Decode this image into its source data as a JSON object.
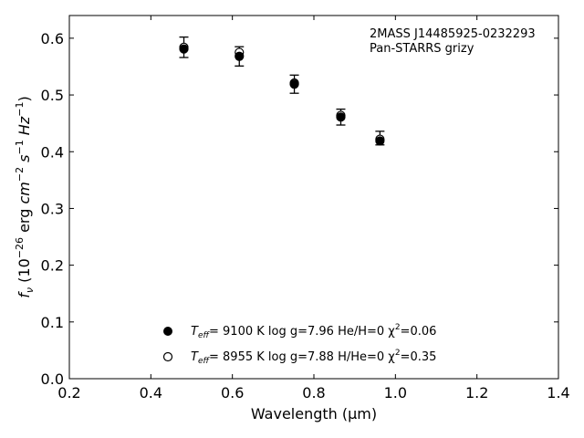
{
  "chart_data": {
    "type": "scatter",
    "title": "",
    "xlabel": "Wavelength (μm)",
    "ylabel_parts": {
      "symbol": "f",
      "symbol_sub": "ν",
      "unit_prefix": " (10",
      "exp1": "−26",
      "mid": " erg ",
      "cm": "cm",
      "exp2": "−2",
      "s": " s",
      "exp3": "−1",
      "hz": " Hz",
      "exp4": "−1",
      "close": ")"
    },
    "xlim": [
      0.2,
      1.4
    ],
    "ylim": [
      0.0,
      0.64
    ],
    "xticks": [
      0.2,
      0.4,
      0.6,
      0.8,
      1.0,
      1.2,
      1.4
    ],
    "xtick_labels": [
      "0.2",
      "0.4",
      "0.6",
      "0.8",
      "1.0",
      "1.2",
      "1.4"
    ],
    "yticks": [
      0.0,
      0.1,
      0.2,
      0.3,
      0.4,
      0.5,
      0.6
    ],
    "ytick_labels": [
      "0.0",
      "0.1",
      "0.2",
      "0.3",
      "0.4",
      "0.5",
      "0.6"
    ],
    "grid": false,
    "annotation": {
      "line1": "2MASS J14485925-0232293",
      "line2": "Pan-STARRS grizy"
    },
    "observed": {
      "x": [
        0.481,
        0.617,
        0.752,
        0.866,
        0.962
      ],
      "y": [
        0.584,
        0.568,
        0.519,
        0.461,
        0.424
      ],
      "err": [
        0.018,
        0.017,
        0.016,
        0.014,
        0.012
      ]
    },
    "series": [
      {
        "marker": "filled-circle",
        "x": [
          0.481,
          0.617,
          0.752,
          0.866,
          0.962
        ],
        "y": [
          0.581,
          0.568,
          0.519,
          0.461,
          0.419
        ],
        "legend": {
          "teff_label": "T",
          "teff_sub": "eff",
          "teff_value": "=  9100 K  log g=7.96  He/H=0  χ",
          "chi_sup": "2",
          "chi_value": "=0.06"
        }
      },
      {
        "marker": "open-circle",
        "x": [
          0.481,
          0.617,
          0.752,
          0.866,
          0.962
        ],
        "y": [
          0.584,
          0.575,
          0.521,
          0.464,
          0.422
        ],
        "legend": {
          "teff_label": "T",
          "teff_sub": "eff",
          "teff_value": "=  8955 K  log g=7.88  H/He=0  χ",
          "chi_sup": "2",
          "chi_value": "=0.35"
        }
      }
    ],
    "legend_position": "lower-center"
  }
}
